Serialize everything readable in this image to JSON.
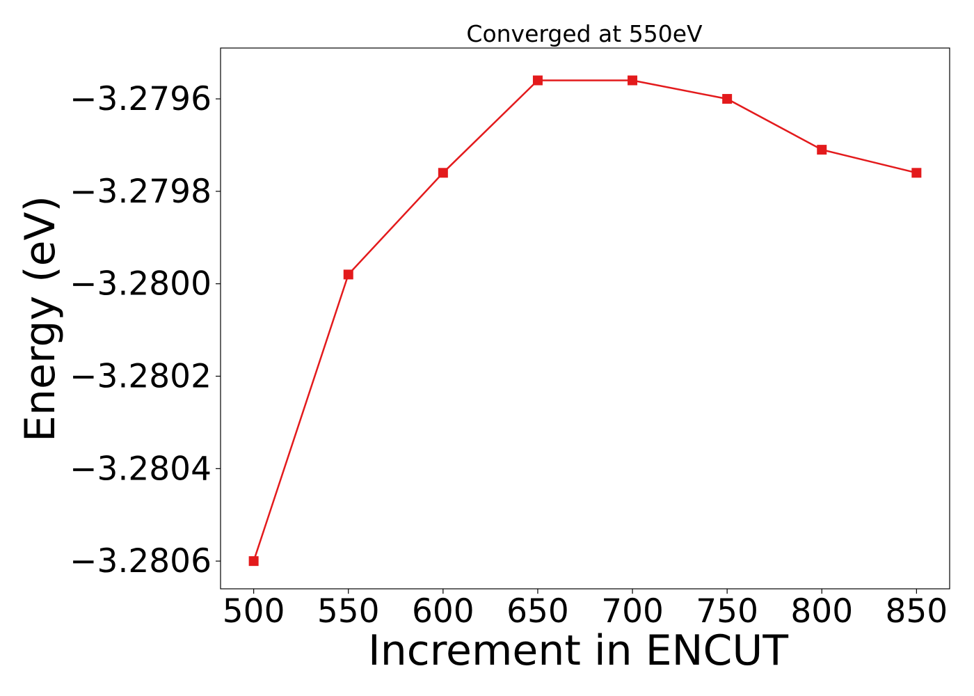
{
  "chart_data": {
    "type": "line",
    "title": "Converged at 550eV",
    "xlabel": "Increment in ENCUT",
    "ylabel": "Energy (eV)",
    "x": [
      500,
      550,
      600,
      650,
      700,
      750,
      800,
      850
    ],
    "series": [
      {
        "values": [
          -3.2806,
          -3.27998,
          -3.27976,
          -3.27956,
          -3.27956,
          -3.2796,
          -3.27971,
          -3.27976
        ],
        "color": "#e31a1c",
        "marker": "square"
      }
    ],
    "xticks": [
      500,
      550,
      600,
      650,
      700,
      750,
      800,
      850
    ],
    "xtick_labels": [
      "500",
      "550",
      "600",
      "650",
      "700",
      "750",
      "800",
      "850"
    ],
    "yticks": [
      -3.2806,
      -3.2804,
      -3.2802,
      -3.28,
      -3.2798,
      -3.2796
    ],
    "ytick_labels": [
      "−3.2806",
      "−3.2804",
      "−3.2802",
      "−3.2800",
      "−3.2798",
      "−3.2796"
    ],
    "xlim": [
      482.5,
      867.5
    ],
    "ylim": [
      -3.28066,
      -3.27949
    ],
    "grid": false,
    "legend": false
  }
}
